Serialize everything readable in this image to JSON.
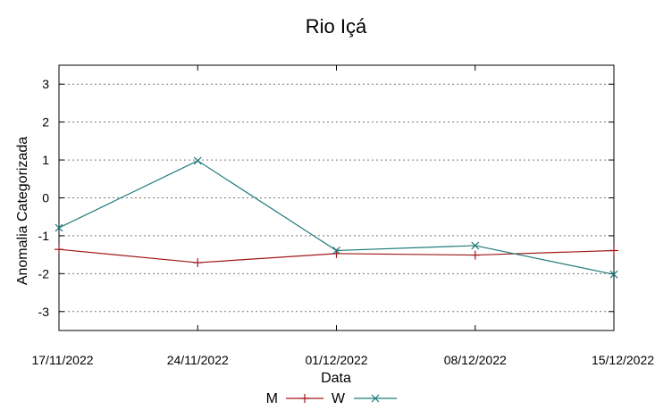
{
  "chart_data": {
    "type": "line",
    "title": "Rio Içá",
    "xlabel": "Data",
    "ylabel": "Anomalia Categorizada",
    "categories": [
      "17/11/2022",
      "24/11/2022",
      "01/12/2022",
      "08/12/2022",
      "15/12/2022"
    ],
    "y_ticks": [
      "-3",
      "-2",
      "-1",
      "0",
      "1",
      "2",
      "3"
    ],
    "ylim": [
      -3.5,
      3.5
    ],
    "grid": true,
    "legend_position": "bottom-center",
    "series": [
      {
        "name": "M",
        "color": "#a01818",
        "marker": "plus",
        "values": [
          -1.36,
          -1.71,
          -1.47,
          -1.51,
          -1.39
        ]
      },
      {
        "name": "W",
        "color": "#1f7a7a",
        "marker": "cross",
        "values": [
          -0.79,
          0.98,
          -1.39,
          -1.26,
          -2.02
        ]
      }
    ]
  }
}
